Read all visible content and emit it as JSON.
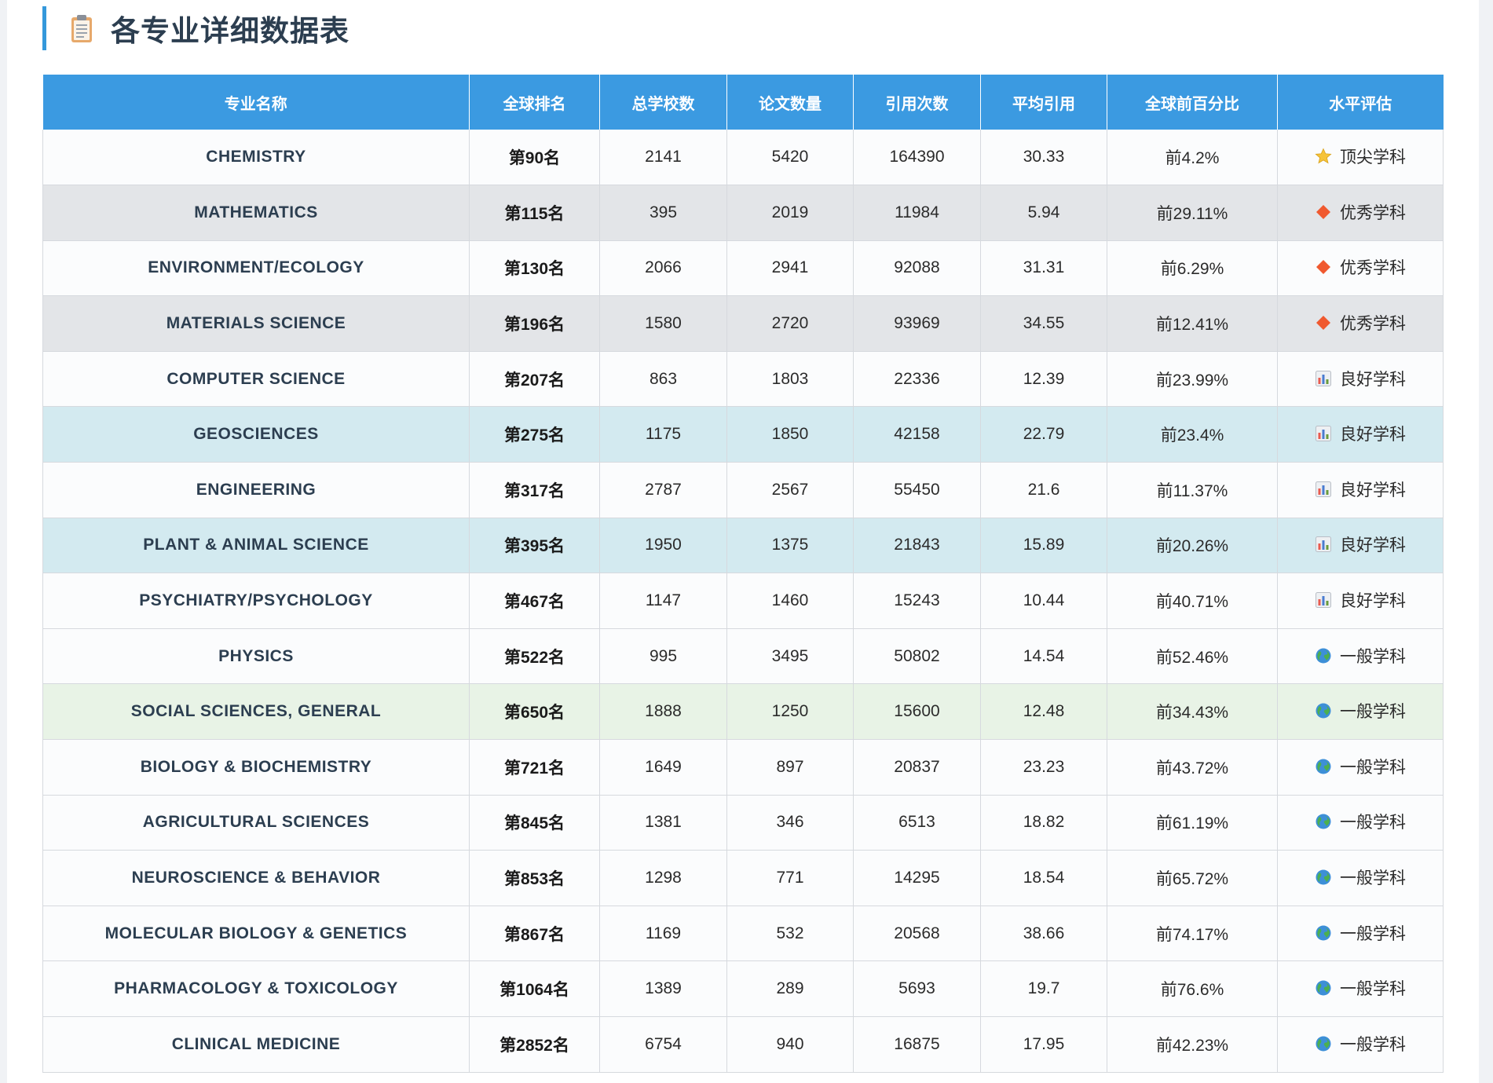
{
  "section": {
    "title": "各专业详细数据表",
    "title_icon": "clipboard-icon"
  },
  "table": {
    "headers": [
      "专业名称",
      "全球排名",
      "总学校数",
      "论文数量",
      "引用次数",
      "平均引用",
      "全球前百分比",
      "水平评估"
    ],
    "rows": [
      {
        "name": "CHEMISTRY",
        "rank": "第90名",
        "schools": "2141",
        "papers": "5420",
        "citations": "164390",
        "avg": "30.33",
        "pct": "前4.2%",
        "level": "顶尖学科",
        "level_icon": "star-icon",
        "row_bg": "white"
      },
      {
        "name": "MATHEMATICS",
        "rank": "第115名",
        "schools": "395",
        "papers": "2019",
        "citations": "11984",
        "avg": "5.94",
        "pct": "前29.11%",
        "level": "优秀学科",
        "level_icon": "diamond-icon",
        "row_bg": "gray"
      },
      {
        "name": "ENVIRONMENT/ECOLOGY",
        "rank": "第130名",
        "schools": "2066",
        "papers": "2941",
        "citations": "92088",
        "avg": "31.31",
        "pct": "前6.29%",
        "level": "优秀学科",
        "level_icon": "diamond-icon",
        "row_bg": "white"
      },
      {
        "name": "MATERIALS SCIENCE",
        "rank": "第196名",
        "schools": "1580",
        "papers": "2720",
        "citations": "93969",
        "avg": "34.55",
        "pct": "前12.41%",
        "level": "优秀学科",
        "level_icon": "diamond-icon",
        "row_bg": "gray"
      },
      {
        "name": "COMPUTER SCIENCE",
        "rank": "第207名",
        "schools": "863",
        "papers": "1803",
        "citations": "22336",
        "avg": "12.39",
        "pct": "前23.99%",
        "level": "良好学科",
        "level_icon": "bar-chart-icon",
        "row_bg": "white"
      },
      {
        "name": "GEOSCIENCES",
        "rank": "第275名",
        "schools": "1175",
        "papers": "1850",
        "citations": "42158",
        "avg": "22.79",
        "pct": "前23.4%",
        "level": "良好学科",
        "level_icon": "bar-chart-icon",
        "row_bg": "cyan"
      },
      {
        "name": "ENGINEERING",
        "rank": "第317名",
        "schools": "2787",
        "papers": "2567",
        "citations": "55450",
        "avg": "21.6",
        "pct": "前11.37%",
        "level": "良好学科",
        "level_icon": "bar-chart-icon",
        "row_bg": "white"
      },
      {
        "name": "PLANT & ANIMAL SCIENCE",
        "rank": "第395名",
        "schools": "1950",
        "papers": "1375",
        "citations": "21843",
        "avg": "15.89",
        "pct": "前20.26%",
        "level": "良好学科",
        "level_icon": "bar-chart-icon",
        "row_bg": "cyan"
      },
      {
        "name": "PSYCHIATRY/PSYCHOLOGY",
        "rank": "第467名",
        "schools": "1147",
        "papers": "1460",
        "citations": "15243",
        "avg": "10.44",
        "pct": "前40.71%",
        "level": "良好学科",
        "level_icon": "bar-chart-icon",
        "row_bg": "white"
      },
      {
        "name": "PHYSICS",
        "rank": "第522名",
        "schools": "995",
        "papers": "3495",
        "citations": "50802",
        "avg": "14.54",
        "pct": "前52.46%",
        "level": "一般学科",
        "level_icon": "globe-icon",
        "row_bg": "white"
      },
      {
        "name": "SOCIAL SCIENCES, GENERAL",
        "rank": "第650名",
        "schools": "1888",
        "papers": "1250",
        "citations": "15600",
        "avg": "12.48",
        "pct": "前34.43%",
        "level": "一般学科",
        "level_icon": "globe-icon",
        "row_bg": "green"
      },
      {
        "name": "BIOLOGY & BIOCHEMISTRY",
        "rank": "第721名",
        "schools": "1649",
        "papers": "897",
        "citations": "20837",
        "avg": "23.23",
        "pct": "前43.72%",
        "level": "一般学科",
        "level_icon": "globe-icon",
        "row_bg": "white"
      },
      {
        "name": "AGRICULTURAL SCIENCES",
        "rank": "第845名",
        "schools": "1381",
        "papers": "346",
        "citations": "6513",
        "avg": "18.82",
        "pct": "前61.19%",
        "level": "一般学科",
        "level_icon": "globe-icon",
        "row_bg": "white"
      },
      {
        "name": "NEUROSCIENCE & BEHAVIOR",
        "rank": "第853名",
        "schools": "1298",
        "papers": "771",
        "citations": "14295",
        "avg": "18.54",
        "pct": "前65.72%",
        "level": "一般学科",
        "level_icon": "globe-icon",
        "row_bg": "white"
      },
      {
        "name": "MOLECULAR BIOLOGY & GENETICS",
        "rank": "第867名",
        "schools": "1169",
        "papers": "532",
        "citations": "20568",
        "avg": "38.66",
        "pct": "前74.17%",
        "level": "一般学科",
        "level_icon": "globe-icon",
        "row_bg": "white"
      },
      {
        "name": "PHARMACOLOGY & TOXICOLOGY",
        "rank": "第1064名",
        "schools": "1389",
        "papers": "289",
        "citations": "5693",
        "avg": "19.7",
        "pct": "前76.6%",
        "level": "一般学科",
        "level_icon": "globe-icon",
        "row_bg": "white"
      },
      {
        "name": "CLINICAL MEDICINE",
        "rank": "第2852名",
        "schools": "6754",
        "papers": "940",
        "citations": "16875",
        "avg": "17.95",
        "pct": "前42.23%",
        "level": "一般学科",
        "level_icon": "globe-icon",
        "row_bg": "white"
      }
    ]
  },
  "colors": {
    "header_bg": "#3b9ae1",
    "accent_border": "#3498db",
    "row_gray": "#e3e5e8",
    "row_cyan": "#d3eaf0",
    "row_green": "#e8f3e6"
  }
}
